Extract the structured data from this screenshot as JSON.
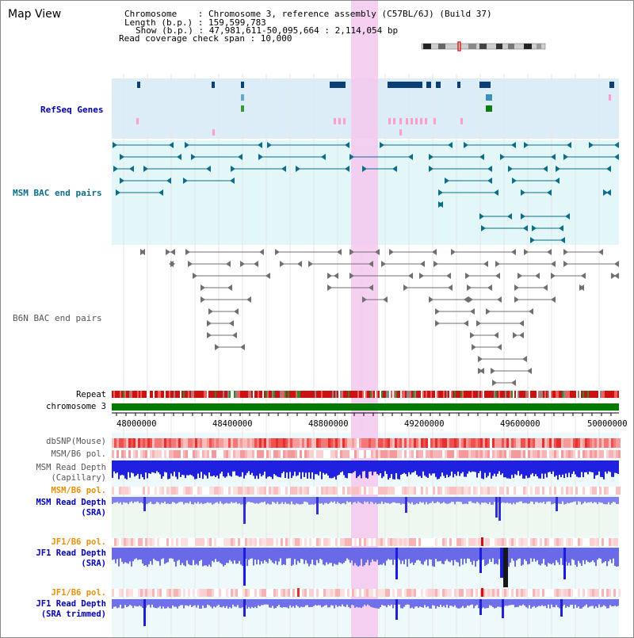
{
  "page_title": "Map View",
  "info": {
    "chromosome_line": "Chromosome    : Chromosome 3, reference assembly (C57BL/6J) (Build 37)",
    "length_line": "Length (b.p.) : 159,599,783",
    "show_line": "Show (b.p.) : 47,981,611-50,095,664 : 2,114,054 bp",
    "coverage_line": "Read coverage check span : 10,000"
  },
  "tracks": {
    "refseq": "RefSeq Genes",
    "msm_bac": "MSM BAC end pairs",
    "b6n_bac": "B6N BAC end pairs",
    "repeat": "Repeat",
    "chromosome": "chromosome 3"
  },
  "axis": {
    "ticks": [
      "48000000",
      "48400000",
      "48800000",
      "49200000",
      "49600000",
      "50000000"
    ]
  },
  "panes": {
    "dbsnp": "dbSNP(Mouse)",
    "msm_b6_pol": "MSM/B6 pol.",
    "msm_depth_cap_1": "MSM Read Depth",
    "msm_depth_cap_2": "(Capillary)",
    "msm_b6_pol_2": "MSM/B6 pol.",
    "msm_depth_sra_1": "MSM Read Depth",
    "msm_depth_sra_2": "(SRA)",
    "jf1_b6_pol": "JF1/B6 pol.",
    "jf1_depth_sra_1": "JF1 Read Depth",
    "jf1_depth_sra_2": "(SRA)",
    "jf1_b6_pol_2": "JF1/B6 pol.",
    "jf1_depth_trim_1": "JF1 Read Depth",
    "jf1_depth_trim_2": "(SRA trimmed)"
  },
  "colors": {
    "refseq_label": "#00009c",
    "msm_bac_label": "#0a6e8a",
    "b6n_bac_label": "#555555",
    "pol_label": "#e8900a",
    "depth_label": "#0000b4",
    "highlight": "#f5c8ef"
  }
}
